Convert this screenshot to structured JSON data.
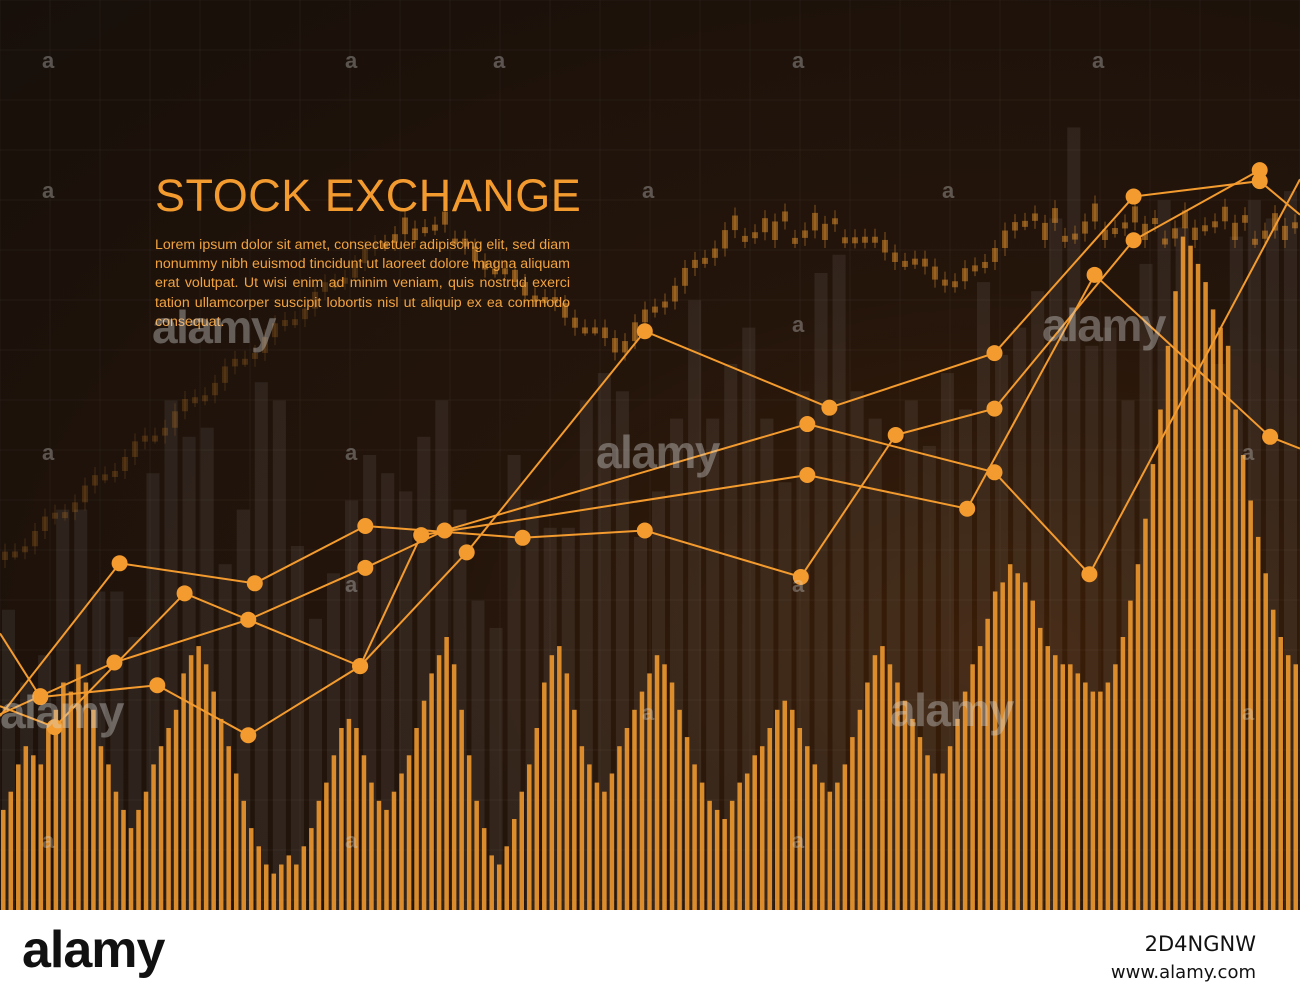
{
  "headline": "STOCK EXCHANGE",
  "body_text": "Lorem ipsum dolor sit amet, consectetuer adipiscing elit, sed diam nonummy nibh euismod tincidunt ut laoreet dolore magna aliquam erat volutpat. Ut wisi enim ad minim veniam, quis nostrud exerci tation ullamcorper suscipit lobortis nisl ut aliquip ex ea commodo consequat.",
  "footer": {
    "brand": "alamy",
    "image_id": "2D4NGNW",
    "site": "www.alamy.com"
  },
  "watermark_text": "alamy",
  "colors": {
    "background": "#1c120b",
    "accent": "#f39b2f",
    "text": "#f2a340",
    "footer_bg": "#ffffff"
  },
  "chart_data": [
    {
      "type": "line",
      "ylim": [
        0,
        100
      ],
      "xlim": [
        0,
        100
      ],
      "grid": true,
      "series": [
        {
          "x": [
            0,
            9.2,
            19.6,
            28.1,
            40.2,
            49.6,
            61.6,
            68.9,
            76.5,
            87.2,
            96.9
          ],
          "y": [
            21.3,
            38.1,
            35.9,
            42.2,
            40.9,
            41.7,
            36.6,
            52.2,
            55.1,
            73.6,
            81.3
          ]
        },
        {
          "x": [
            0,
            4.2,
            14.2,
            27.7,
            35.9,
            49.6,
            63.8,
            76.5,
            87.2,
            96.9,
            100
          ],
          "y": [
            22.4,
            20.1,
            34.8,
            26.8,
            39.3,
            63.6,
            55.2,
            61.2,
            78.4,
            80.1,
            76.4
          ]
        },
        {
          "x": [
            0,
            3.1,
            12.1,
            19.1,
            27.7,
            32.4,
            62.1,
            74.4,
            84.2,
            97.7,
            100
          ],
          "y": [
            30.4,
            23.4,
            24.7,
            19.2,
            26.8,
            41.2,
            47.8,
            44.1,
            69.8,
            52.0,
            50.7
          ]
        },
        {
          "x": [
            0,
            3.1,
            8.8,
            19.1,
            28.1,
            34.2,
            62.1,
            76.5,
            83.8,
            100
          ],
          "y": [
            21.5,
            23.5,
            27.2,
            31.9,
            37.6,
            41.7,
            53.4,
            48.1,
            36.9,
            80.3
          ]
        }
      ]
    },
    {
      "type": "bar",
      "ylim": [
        0,
        100
      ],
      "values": [
        11,
        13,
        16,
        18,
        17,
        16,
        20,
        22,
        25,
        24,
        27,
        25,
        22,
        18,
        16,
        13,
        11,
        9,
        11,
        13,
        16,
        18,
        20,
        22,
        26,
        28,
        29,
        27,
        24,
        21,
        18,
        15,
        12,
        9,
        7,
        5,
        4,
        5,
        6,
        5,
        7,
        9,
        12,
        14,
        17,
        20,
        21,
        20,
        17,
        14,
        12,
        11,
        13,
        15,
        17,
        20,
        23,
        26,
        28,
        30,
        27,
        22,
        17,
        12,
        9,
        6,
        5,
        7,
        10,
        13,
        16,
        20,
        25,
        28,
        29,
        26,
        22,
        18,
        16,
        14,
        13,
        15,
        18,
        20,
        22,
        24,
        26,
        28,
        27,
        25,
        22,
        19,
        16,
        14,
        12,
        11,
        10,
        12,
        14,
        15,
        17,
        18,
        20,
        22,
        23,
        22,
        20,
        18,
        16,
        14,
        13,
        14,
        16,
        19,
        22,
        25,
        28,
        29,
        27,
        25,
        23,
        21,
        19,
        17,
        15,
        15,
        18,
        21,
        24,
        27,
        29,
        32,
        35,
        36,
        38,
        37,
        36,
        34,
        31,
        29,
        28,
        27,
        27,
        26,
        25,
        24,
        24,
        25,
        27,
        30,
        34,
        38,
        43,
        49,
        55,
        62,
        68,
        74,
        73,
        71,
        69,
        66,
        64,
        62,
        55,
        50,
        45,
        41,
        37,
        33,
        30,
        28,
        27
      ]
    },
    {
      "type": "bar",
      "ylim": [
        0,
        100
      ],
      "values": [
        33,
        25,
        28,
        44,
        44,
        35,
        35,
        30,
        48,
        56,
        52,
        53,
        38,
        44,
        58,
        56,
        40,
        32,
        37,
        45,
        50,
        48,
        46,
        52,
        56,
        44,
        34,
        31,
        50,
        45,
        42,
        42,
        56,
        59,
        57,
        41,
        46,
        54,
        67,
        54,
        60,
        64,
        54,
        47,
        57,
        70,
        72,
        57,
        54,
        46,
        56,
        51,
        59,
        55,
        69,
        61,
        64,
        68,
        76,
        86,
        62,
        64,
        56,
        71,
        78,
        75,
        60,
        60,
        74,
        78,
        76,
        79
      ]
    }
  ]
}
